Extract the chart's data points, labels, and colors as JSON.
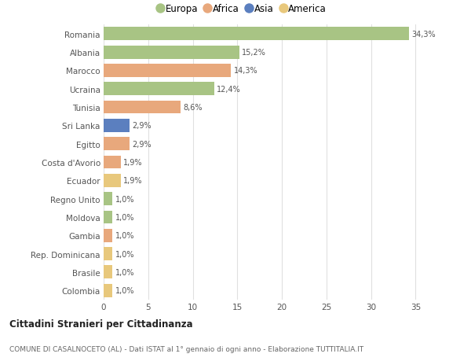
{
  "countries": [
    "Romania",
    "Albania",
    "Marocco",
    "Ucraina",
    "Tunisia",
    "Sri Lanka",
    "Egitto",
    "Costa d'Avorio",
    "Ecuador",
    "Regno Unito",
    "Moldova",
    "Gambia",
    "Rep. Dominicana",
    "Brasile",
    "Colombia"
  ],
  "values": [
    34.3,
    15.2,
    14.3,
    12.4,
    8.6,
    2.9,
    2.9,
    1.9,
    1.9,
    1.0,
    1.0,
    1.0,
    1.0,
    1.0,
    1.0
  ],
  "labels": [
    "34,3%",
    "15,2%",
    "14,3%",
    "12,4%",
    "8,6%",
    "2,9%",
    "2,9%",
    "1,9%",
    "1,9%",
    "1,0%",
    "1,0%",
    "1,0%",
    "1,0%",
    "1,0%",
    "1,0%"
  ],
  "continents": [
    "Europa",
    "Europa",
    "Africa",
    "Europa",
    "Africa",
    "Asia",
    "Africa",
    "Africa",
    "America",
    "Europa",
    "Europa",
    "Africa",
    "America",
    "America",
    "America"
  ],
  "continent_colors": {
    "Europa": "#a8c484",
    "Africa": "#e8a87c",
    "Asia": "#5b7fbf",
    "America": "#e8c87c"
  },
  "legend_order": [
    "Europa",
    "Africa",
    "Asia",
    "America"
  ],
  "title": "Cittadini Stranieri per Cittadinanza",
  "subtitle": "COMUNE DI CASALNOCETO (AL) - Dati ISTAT al 1° gennaio di ogni anno - Elaborazione TUTTITALIA.IT",
  "xlim": [
    0,
    37
  ],
  "xticks": [
    0,
    5,
    10,
    15,
    20,
    25,
    30,
    35
  ],
  "background_color": "#ffffff",
  "grid_color": "#e0e0e0",
  "bar_height": 0.72,
  "figure_width": 6.0,
  "figure_height": 4.6,
  "dpi": 100
}
